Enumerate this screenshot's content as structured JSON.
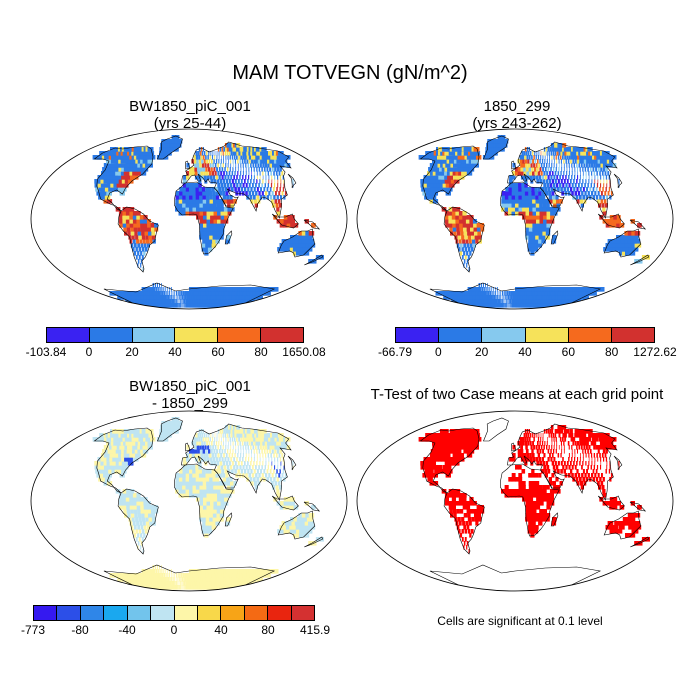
{
  "title": "MAM TOTVEGN (gN/m^2)",
  "panels": [
    {
      "id": "case1",
      "title_line1": "BW1850_piC_001",
      "title_line2": "(yrs 25-44)",
      "colorbar": {
        "colors": [
          "#3a22f2",
          "#2b7ae6",
          "#86c9ee",
          "#f6e25a",
          "#f56a1e",
          "#d2312f"
        ],
        "labels": [
          "-103.84",
          "0",
          "20",
          "40",
          "60",
          "80",
          "1650.08"
        ]
      }
    },
    {
      "id": "case2",
      "title_line1": "1850_299",
      "title_line2": "(yrs 243-262)",
      "colorbar": {
        "colors": [
          "#3a22f2",
          "#2b7ae6",
          "#86c9ee",
          "#f6e25a",
          "#f56a1e",
          "#d2312f"
        ],
        "labels": [
          "-66.79",
          "0",
          "20",
          "40",
          "60",
          "80",
          "1272.62"
        ]
      }
    },
    {
      "id": "diff",
      "title_line1": "BW1850_piC_001",
      "title_line2": "- 1850_299",
      "colorbar": {
        "colors": [
          "#3519f0",
          "#2c4fe8",
          "#2f86e8",
          "#1aa8ef",
          "#72c4ec",
          "#bfe4f2",
          "#fdf6a9",
          "#f8d84a",
          "#f7a417",
          "#f46a14",
          "#e9250f",
          "#d43131"
        ],
        "labels": [
          "-773",
          "-80",
          "-40",
          "0",
          "40",
          "80",
          "415.9"
        ]
      }
    },
    {
      "id": "ttest",
      "title_line1": "T-Test of two Case means at each grid point",
      "note": "Cells are significant at 0.1 level"
    }
  ],
  "map_colors": {
    "case_base": "#2b7ae6",
    "case_hot": "#d2312f",
    "case_warm": "#f56a1e",
    "case_yellow": "#f6e25a",
    "case_lightblue": "#86c9ee",
    "case_neg": "#3a22f2",
    "diff_base": "#bfe4f2",
    "diff_yellow": "#fdf6a9",
    "diff_blue": "#2c4fe8",
    "ttest_red": "#ff0000"
  }
}
